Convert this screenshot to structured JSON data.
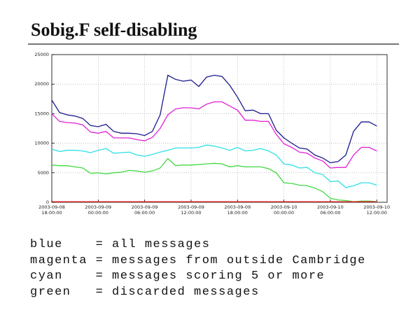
{
  "chart_data": {
    "type": "line",
    "title": "Sobig.F  self-disabling",
    "x": [
      "2003-09-08T18:00:00",
      "2003-09-08T19:00:00",
      "2003-09-08T20:00:00",
      "2003-09-08T21:00:00",
      "2003-09-08T22:00:00",
      "2003-09-08T23:00:00",
      "2003-09-09T00:00:00",
      "2003-09-09T01:00:00",
      "2003-09-09T02:00:00",
      "2003-09-09T03:00:00",
      "2003-09-09T04:00:00",
      "2003-09-09T05:00:00",
      "2003-09-09T06:00:00",
      "2003-09-09T07:00:00",
      "2003-09-09T08:00:00",
      "2003-09-09T09:00:00",
      "2003-09-09T10:00:00",
      "2003-09-09T11:00:00",
      "2003-09-09T12:00:00",
      "2003-09-09T13:00:00",
      "2003-09-09T14:00:00",
      "2003-09-09T15:00:00",
      "2003-09-09T16:00:00",
      "2003-09-09T17:00:00",
      "2003-09-09T18:00:00",
      "2003-09-09T19:00:00",
      "2003-09-09T20:00:00",
      "2003-09-09T21:00:00",
      "2003-09-09T22:00:00",
      "2003-09-09T23:00:00",
      "2003-09-10T00:00:00",
      "2003-09-10T01:00:00",
      "2003-09-10T02:00:00",
      "2003-09-10T03:00:00",
      "2003-09-10T04:00:00",
      "2003-09-10T05:00:00",
      "2003-09-10T06:00:00",
      "2003-09-10T07:00:00",
      "2003-09-10T08:00:00",
      "2003-09-10T09:00:00",
      "2003-09-10T10:00:00",
      "2003-09-10T11:00:00",
      "2003-09-10T12:00:00"
    ],
    "xlim": [
      "2003-09-08T18:00:00",
      "2003-09-10T13:20:00"
    ],
    "xticks": [
      {
        "value": "2003-09-08T18:00:00",
        "label": "2003-09-08 18:00:00"
      },
      {
        "value": "2003-09-09T00:00:00",
        "label": "2003-09-09 00:00:00"
      },
      {
        "value": "2003-09-09T06:00:00",
        "label": "2003-09-09 06:00:00"
      },
      {
        "value": "2003-09-09T12:00:00",
        "label": "2003-09-09 12:00:00"
      },
      {
        "value": "2003-09-09T18:00:00",
        "label": "2003-09-09 18:00:00"
      },
      {
        "value": "2003-09-10T00:00:00",
        "label": "2003-09-10 00:00:00"
      },
      {
        "value": "2003-09-10T06:00:00",
        "label": "2003-09-10 06:00:00"
      },
      {
        "value": "2003-09-10T12:00:00",
        "label": "2003-09-10 12:00:00"
      }
    ],
    "ylim": [
      0,
      25000
    ],
    "yticks": [
      0,
      5000,
      10000,
      15000,
      20000,
      25000
    ],
    "grid": true,
    "series": [
      {
        "name": "blue    = all messages",
        "color": "#1a1a8c",
        "values": [
          17300,
          15200,
          14800,
          14600,
          14200,
          13000,
          12800,
          13200,
          12000,
          11700,
          11700,
          11600,
          11300,
          12000,
          14800,
          21500,
          20800,
          20500,
          20700,
          19600,
          21200,
          21500,
          21300,
          19800,
          17800,
          15500,
          15600,
          15000,
          15000,
          12200,
          10900,
          10000,
          9200,
          9000,
          8000,
          7500,
          6700,
          6900,
          8000,
          12000,
          13600,
          13600,
          12900
        ]
      },
      {
        "name": "magenta = messages from outside Cambridge",
        "color": "#e020d8",
        "values": [
          15000,
          13700,
          13500,
          13400,
          13100,
          11900,
          11700,
          12000,
          10900,
          10900,
          10900,
          10600,
          10400,
          11000,
          12500,
          14800,
          15800,
          16000,
          16000,
          15800,
          16600,
          17000,
          17000,
          16300,
          15600,
          13900,
          13900,
          13700,
          13700,
          11500,
          9900,
          9300,
          8500,
          8300,
          7500,
          7000,
          5800,
          5900,
          5900,
          8000,
          9300,
          9300,
          8700
        ]
      },
      {
        "name": "cyan    = messages scoring 5 or more",
        "color": "#30e0e8",
        "values": [
          9000,
          8600,
          8800,
          8800,
          8700,
          8400,
          8800,
          9100,
          8300,
          8400,
          8500,
          8000,
          7800,
          8100,
          8500,
          8800,
          9200,
          9200,
          9200,
          9300,
          9700,
          9500,
          9200,
          8800,
          9300,
          8700,
          8800,
          9100,
          8700,
          8000,
          6500,
          6300,
          5800,
          5900,
          5000,
          4700,
          3500,
          3600,
          2500,
          2800,
          3300,
          3300,
          2900
        ]
      },
      {
        "name": "green   = discarded messages",
        "color": "#40d840",
        "values": [
          6300,
          6200,
          6200,
          6000,
          5800,
          4900,
          5000,
          4800,
          5000,
          5100,
          5400,
          5300,
          5100,
          5300,
          5800,
          7400,
          6200,
          6300,
          6300,
          6400,
          6500,
          6600,
          6500,
          6000,
          6200,
          6000,
          6000,
          6000,
          5700,
          5000,
          3300,
          3200,
          2900,
          2800,
          2400,
          1800,
          700,
          400,
          300,
          100,
          200,
          200,
          100
        ]
      },
      {
        "color": "#e02020",
        "values": [
          100,
          100,
          100,
          100,
          100,
          100,
          100,
          100,
          100,
          100,
          100,
          100,
          100,
          100,
          100,
          100,
          100,
          100,
          100,
          100,
          100,
          100,
          100,
          100,
          100,
          100,
          100,
          100,
          100,
          100,
          100,
          100,
          100,
          100,
          100,
          100,
          100,
          100,
          100,
          100,
          100,
          100,
          100
        ]
      }
    ]
  }
}
